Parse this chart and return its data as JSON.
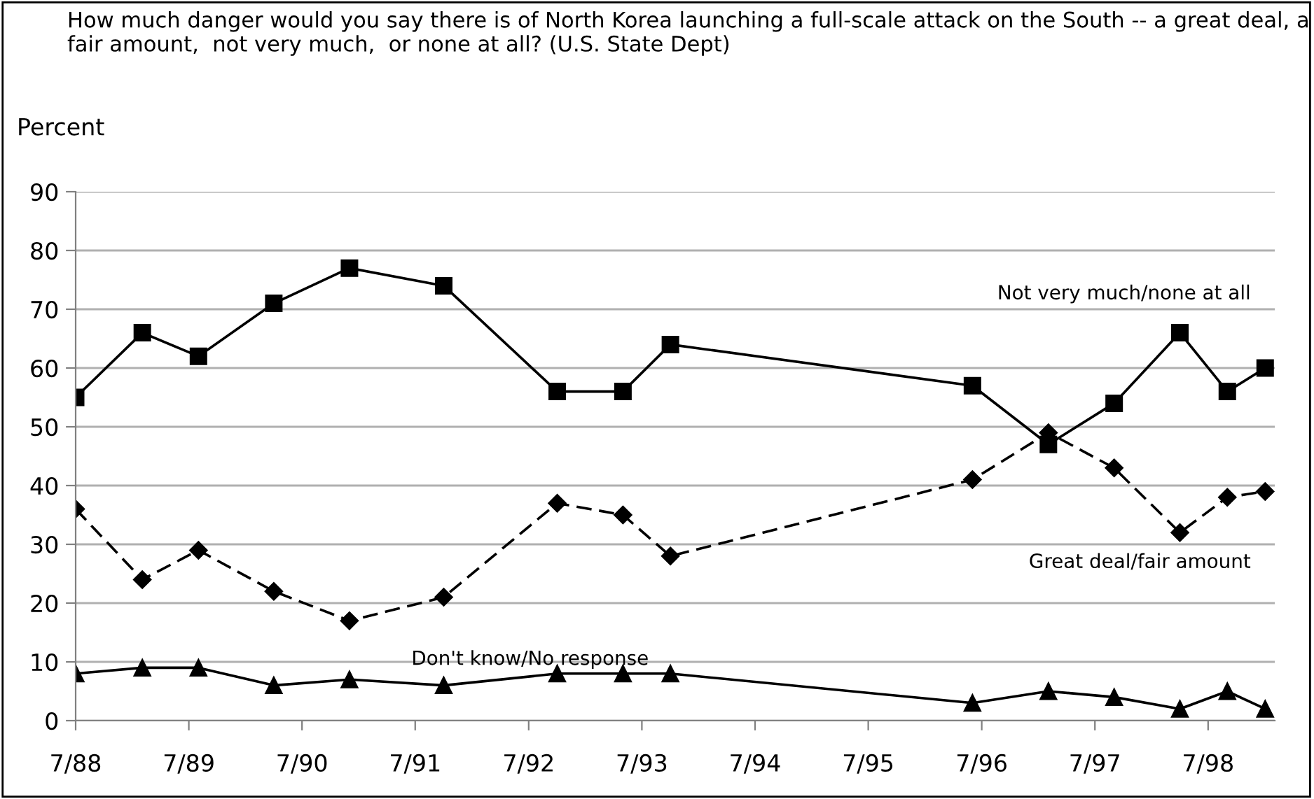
{
  "chart_data": {
    "type": "line",
    "title": "How much danger would you say there is of North Korea launching a full-scale attack on the South -- a great deal, a fair amount,  not very much,  or none at all? (U.S. State Dept)",
    "ylabel": "Percent",
    "x": [
      "1988-07",
      "1989-02",
      "1989-08",
      "1990-04",
      "1990-12",
      "1991-10",
      "1992-10",
      "1993-05",
      "1993-10",
      "1996-06",
      "1997-02",
      "1997-09",
      "1998-04",
      "1998-09",
      "1999-01"
    ],
    "series": [
      {
        "name": "Not very much/none at all",
        "color": "#000000",
        "marker": "square",
        "line_style": "solid",
        "values": [
          55,
          66,
          62,
          71,
          77,
          74,
          56,
          56,
          64,
          57,
          47,
          54,
          66,
          56,
          60
        ]
      },
      {
        "name": "Great deal/fair amount",
        "color": "#000000",
        "marker": "diamond",
        "line_style": "dashed",
        "values": [
          36,
          24,
          29,
          22,
          17,
          21,
          37,
          35,
          28,
          41,
          49,
          43,
          32,
          38,
          39
        ]
      },
      {
        "name": "Don't know/No response",
        "color": "#000000",
        "marker": "triangle",
        "line_style": "solid",
        "values": [
          8,
          9,
          9,
          6,
          7,
          6,
          8,
          8,
          8,
          3,
          5,
          4,
          2,
          5,
          2
        ]
      }
    ],
    "xlim": [
      "1988-07",
      "1999-02"
    ],
    "xticks": [
      {
        "value": "1988-07",
        "label": "7/88"
      },
      {
        "value": "1989-07",
        "label": "7/89"
      },
      {
        "value": "1990-07",
        "label": "7/90"
      },
      {
        "value": "1991-07",
        "label": "7/91"
      },
      {
        "value": "1992-07",
        "label": "7/92"
      },
      {
        "value": "1993-07",
        "label": "7/93"
      },
      {
        "value": "1994-07",
        "label": "7/94"
      },
      {
        "value": "1995-07",
        "label": "7/95"
      },
      {
        "value": "1996-07",
        "label": "7/96"
      },
      {
        "value": "1997-07",
        "label": "7/97"
      },
      {
        "value": "1998-07",
        "label": "7/98"
      }
    ],
    "ylim": [
      0,
      90
    ],
    "yticks": [
      0,
      10,
      20,
      30,
      40,
      50,
      60,
      70,
      80,
      90
    ],
    "grid": "y",
    "legend": false
  }
}
